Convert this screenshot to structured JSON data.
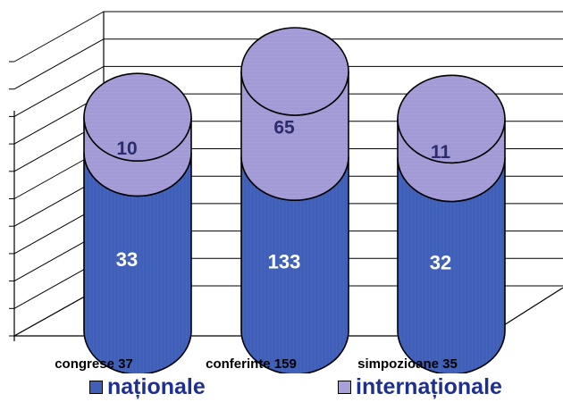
{
  "chart_data": {
    "type": "bar",
    "stacked": true,
    "style": "3d-cylinder",
    "categories": [
      "congrese 37",
      "conferinte 159",
      "simpozioane 35"
    ],
    "series": [
      {
        "name": "naționale",
        "values": [
          33,
          133,
          32
        ]
      },
      {
        "name": "internaționale",
        "values": [
          10,
          65,
          11
        ]
      }
    ],
    "title": "",
    "xlabel": "",
    "ylabel": "",
    "ylim": [
      0,
      200
    ],
    "grid": true,
    "legend": "bottom"
  },
  "colors": {
    "nationale": "#3f5fb8",
    "internationale": "#a8a0d8",
    "grid": "#000000"
  },
  "legend": {
    "items": [
      "naționale",
      "internaționale"
    ]
  }
}
